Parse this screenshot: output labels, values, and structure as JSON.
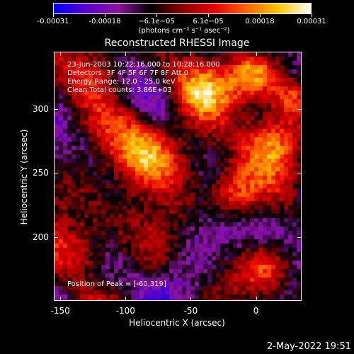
{
  "colorbar": {
    "tick_labels": [
      "-0.00031",
      "-0.00018",
      "−6.1e−05",
      "6.1e−05",
      "0.00018",
      "0.00031"
    ],
    "unit": "(photons cm⁻² s⁻¹ asec⁻²)",
    "colors": [
      "#0000ff",
      "#5a00c8",
      "#8c14a0",
      "#000000",
      "#8c0000",
      "#e60000",
      "#ff6400",
      "#ffc800",
      "#ffffff"
    ]
  },
  "annotations": {
    "line1": "23-Jun-2003 10:22:16.000 to 10:28:16.000",
    "line2": "Detectors: 3F 4F 5F 6F 7F 8F Att 0",
    "line3": "Energy Range: 12.0 - 25.0 keV",
    "line4": "Clean     Total counts: 3.86E+03",
    "peak": "Position of Peak = [-60,319]"
  },
  "timestamp": "2-May-2022 19:51",
  "chart_data": {
    "type": "heatmap",
    "title": "Reconstructed RHESSI Image",
    "xlabel": "Heliocentric X (arcsec)",
    "ylabel": "Heliocentric Y (arcsec)",
    "xlim": [
      -155,
      35
    ],
    "ylim": [
      150,
      345
    ],
    "x_ticks": [
      -150,
      -100,
      -50,
      0
    ],
    "y_ticks": [
      200,
      250,
      300
    ],
    "value_range": [
      -0.00031,
      0.00031
    ],
    "grid": false,
    "peak_position": [
      -60,
      319
    ]
  }
}
